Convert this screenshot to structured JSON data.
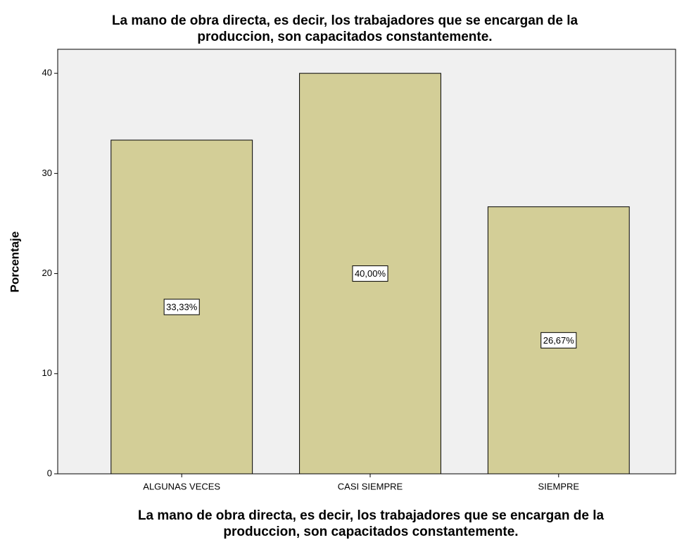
{
  "chart_data": {
    "type": "bar",
    "title": [
      "La mano de obra directa, es decir, los trabajadores que se encargan de la",
      "produccion, son capacitados constantemente."
    ],
    "xlabel": [
      "La mano de obra directa, es decir, los trabajadores que se encargan de la",
      "produccion, son capacitados constantemente."
    ],
    "ylabel": "Porcentaje",
    "categories": [
      "ALGUNAS VECES",
      "CASI SIEMPRE",
      "SIEMPRE"
    ],
    "values": [
      33.33,
      40,
      26.67
    ],
    "value_labels": [
      "33,33%",
      "40,00%",
      "26,67%"
    ],
    "color": "#d3ce97",
    "ylim": [
      0,
      42.4
    ],
    "yticks": [
      0,
      10,
      20,
      30,
      40
    ],
    "grid": false
  }
}
